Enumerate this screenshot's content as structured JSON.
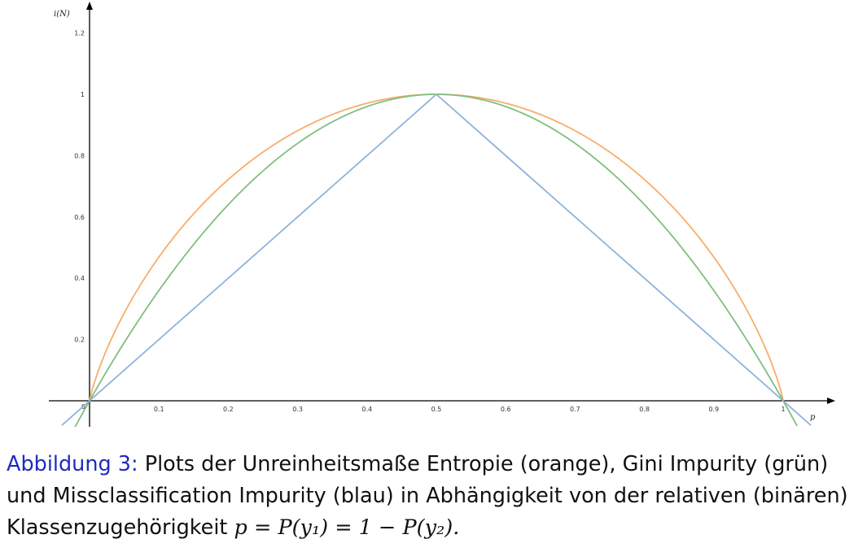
{
  "chart_data": {
    "type": "line",
    "xlabel": "p",
    "ylabel": "i(N)",
    "xlim": [
      -0.06,
      1.06
    ],
    "ylim": [
      -0.08,
      1.28
    ],
    "x_ticks": [
      0.1,
      0.2,
      0.3,
      0.4,
      0.5,
      0.6,
      0.7,
      0.8,
      0.9
    ],
    "x_tick_labels": [
      "0.1",
      "0.2",
      "0.3",
      "0.4",
      "0.5",
      "0.6",
      "0.7",
      "0.8",
      "0.9"
    ],
    "y_ticks": [
      0.2,
      0.4,
      0.6,
      0.8,
      1,
      1.2
    ],
    "y_tick_labels": [
      "0.2",
      "0.4",
      "0.6",
      "0.8",
      "1",
      "1.2"
    ],
    "origin_label": "0",
    "x_one_label": "1",
    "grid": false,
    "series": [
      {
        "key": "entropy",
        "color": "#f8ad6b",
        "x": [
          0,
          0.05,
          0.1,
          0.15,
          0.2,
          0.25,
          0.3,
          0.35,
          0.4,
          0.45,
          0.5,
          0.55,
          0.6,
          0.65,
          0.7,
          0.75,
          0.8,
          0.85,
          0.9,
          0.95,
          1
        ],
        "y": [
          0,
          0.286,
          0.469,
          0.61,
          0.722,
          0.811,
          0.881,
          0.934,
          0.971,
          0.993,
          1,
          0.993,
          0.971,
          0.934,
          0.881,
          0.811,
          0.722,
          0.61,
          0.469,
          0.286,
          0
        ]
      },
      {
        "key": "gini",
        "color": "#7fbf7f",
        "x": [
          -0.04,
          0,
          0.1,
          0.2,
          0.3,
          0.4,
          0.5,
          0.6,
          0.7,
          0.8,
          0.9,
          1,
          1.02
        ],
        "y": [
          -0.166,
          0,
          0.36,
          0.64,
          0.84,
          0.96,
          1,
          0.96,
          0.84,
          0.64,
          0.36,
          0,
          -0.082
        ]
      },
      {
        "key": "misclassification",
        "color": "#8fb3d9",
        "x": [
          -0.04,
          0.5,
          1.04
        ],
        "y": [
          -0.08,
          1,
          -0.08
        ]
      }
    ]
  },
  "caption": {
    "label": "Abbildung 3:",
    "text": "Plots der Unreinheitsmaße Entropie (orange), Gini Impurity (grün) und Missclassification Impurity (blau) in Abhängigkeit von der relativen (binären) Klassenzugehörigkeit",
    "formula": "p = P(y₁) = 1 − P(y₂)."
  }
}
